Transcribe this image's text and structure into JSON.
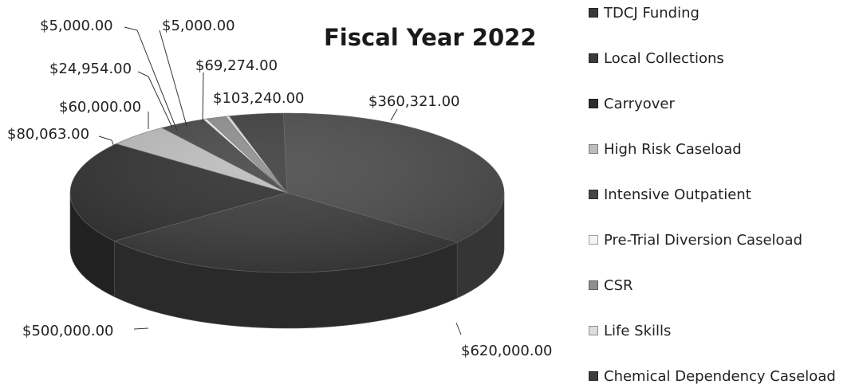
{
  "chart_data": {
    "type": "pie",
    "title": "Fiscal Year 2022",
    "three_d": true,
    "legend_position": "right",
    "slices": [
      {
        "name": "TDCJ Funding",
        "value": 620000.0,
        "label": "$620,000.00",
        "color": "#4a4a4a"
      },
      {
        "name": "Local Collections",
        "value": 500000.0,
        "label": "$500,000.00",
        "color": "#3a3a3a"
      },
      {
        "name": "Carryover",
        "value": 360321.0,
        "label": "$360,321.00",
        "color": "#2e2e2e"
      },
      {
        "name": "High Risk Caseload",
        "value": 80063.0,
        "label": "$80,063.00",
        "color": "#bdbdbd"
      },
      {
        "name": "Intensive Outpatient",
        "value": 60000.0,
        "label": "$60,000.00",
        "color": "#454545"
      },
      {
        "name": "Pre-Trial Diversion Caseload",
        "value": 5000.0,
        "label": "$5,000.00",
        "color": "#f0f0f0"
      },
      {
        "name": "CSR",
        "value": 24954.0,
        "label": "$24,954.00",
        "color": "#8f8f8f"
      },
      {
        "name": "Life Skills",
        "value": 5000.0,
        "label": "$5,000.00",
        "color": "#dddddd"
      },
      {
        "name": "Chemical Dependency Caseload",
        "value": 69274.0,
        "label": "$69,274.00",
        "color": "#3d3d3d"
      }
    ],
    "separate_labels": [
      {
        "label": "$103,240.00"
      }
    ]
  },
  "legend": {
    "items": [
      {
        "label": "TDCJ Funding",
        "color": "#3a3a3a"
      },
      {
        "label": "Local Collections",
        "color": "#3a3a3a"
      },
      {
        "label": "Carryover",
        "color": "#2e2e2e"
      },
      {
        "label": "High Risk Caseload",
        "color": "#bdbdbd"
      },
      {
        "label": "Intensive Outpatient",
        "color": "#454545"
      },
      {
        "label": "Pre-Trial Diversion Caseload",
        "color": "#f4f4f4"
      },
      {
        "label": "CSR",
        "color": "#8f8f8f"
      },
      {
        "label": "Life Skills",
        "color": "#dddddd"
      },
      {
        "label": "Chemical Dependency Caseload",
        "color": "#3d3d3d"
      }
    ]
  }
}
